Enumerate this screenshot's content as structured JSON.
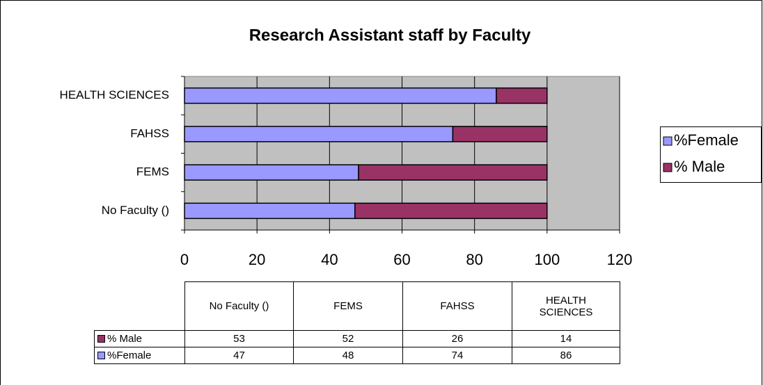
{
  "chart_data": {
    "type": "stacked-bar-horizontal",
    "title": "Research Assistant staff by Faculty",
    "categories": [
      "No Faculty ()",
      "FEMS",
      "FAHSS",
      "HEALTH SCIENCES"
    ],
    "series": [
      {
        "name": "%Female",
        "color": "#9999ff",
        "values": [
          47,
          48,
          74,
          86
        ]
      },
      {
        "name": "% Male",
        "color": "#993366",
        "values": [
          53,
          52,
          26,
          14
        ]
      }
    ],
    "xlim": [
      0,
      120
    ],
    "xticks": [
      0,
      20,
      40,
      60,
      80,
      100,
      120
    ],
    "grid": true,
    "legend": "right",
    "plot_background": "#c0c0c0"
  }
}
